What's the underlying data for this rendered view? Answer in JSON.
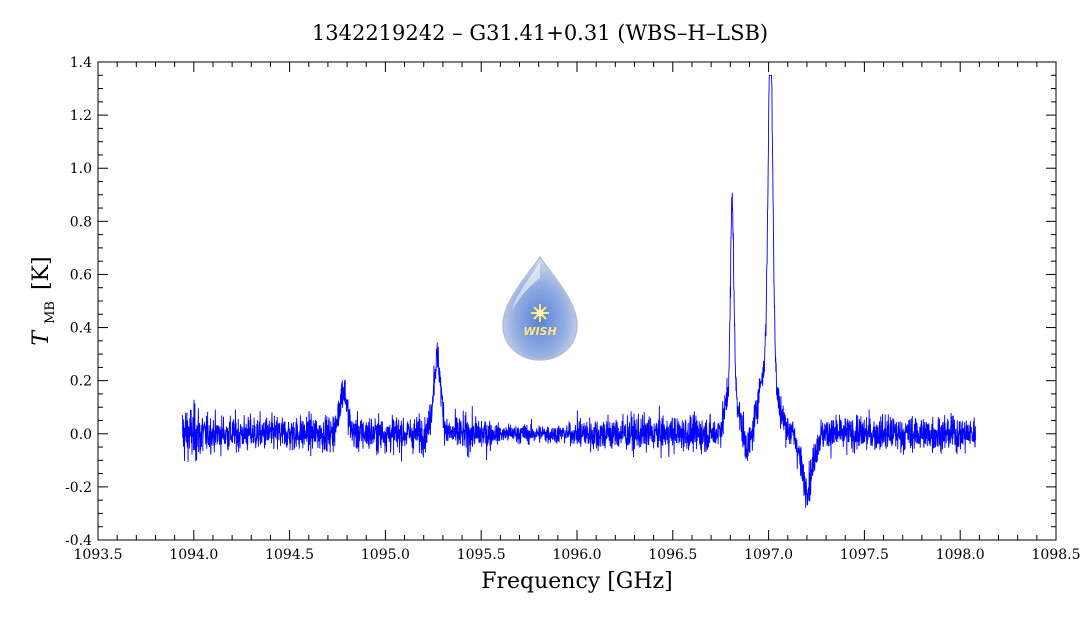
{
  "chart_data": {
    "type": "line",
    "title": "1342219242 – G31.41+0.31 (WBS–H–LSB)",
    "xlabel": "Frequency [GHz]",
    "ylabel_main": "T",
    "ylabel_sub": "MB",
    "ylabel_unit": "[K]",
    "xlim": [
      1093.5,
      1098.5
    ],
    "ylim": [
      -0.4,
      1.4
    ],
    "x_ticks": [
      "1093.5",
      "1094.0",
      "1094.5",
      "1095.0",
      "1095.5",
      "1096.0",
      "1096.5",
      "1097.0",
      "1097.5",
      "1098.0",
      "1098.5"
    ],
    "y_ticks": [
      "-0.4",
      "-0.2",
      "0.0",
      "0.2",
      "0.4",
      "0.6",
      "0.8",
      "1.0",
      "1.2",
      "1.4"
    ],
    "grid": false,
    "series": [
      {
        "color": "#0000ff",
        "x_range": [
          1093.94,
          1098.08
        ],
        "noise_rms_K": 0.06,
        "features": [
          {
            "center": 1094.78,
            "peak": 0.17,
            "width": 0.02
          },
          {
            "center": 1095.27,
            "peak": 0.28,
            "width": 0.02
          },
          {
            "center": 1096.81,
            "peak": 0.69,
            "width": 0.008
          },
          {
            "center": 1096.81,
            "peak": 0.2,
            "width": 0.03
          },
          {
            "center": 1096.9,
            "peak": -0.09,
            "width": 0.03
          },
          {
            "center": 1097.01,
            "peak": 1.3,
            "width": 0.012
          },
          {
            "center": 1096.99,
            "peak": 0.25,
            "width": 0.05
          },
          {
            "center": 1097.2,
            "peak": -0.2,
            "width": 0.03
          }
        ]
      }
    ]
  },
  "logo": {
    "text": "WISH"
  }
}
